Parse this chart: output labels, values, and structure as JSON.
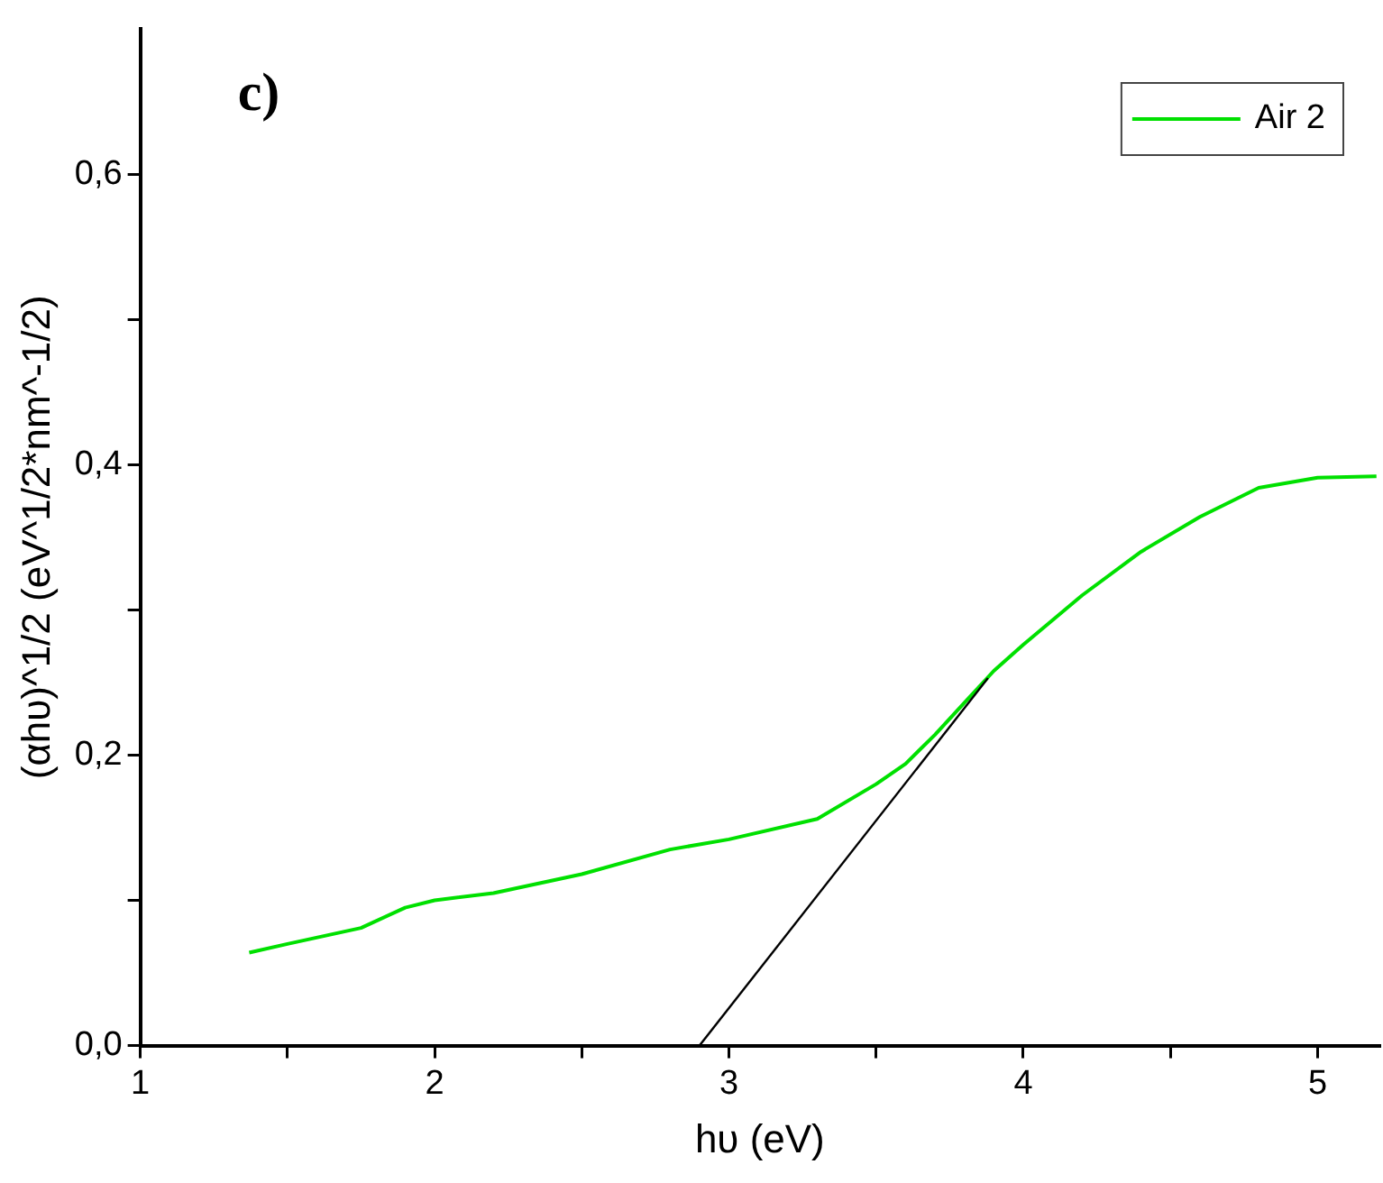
{
  "chart_data": {
    "type": "line",
    "annotations": [
      "c)"
    ],
    "xlabel": "hυ (eV)",
    "ylabel": "(αhυ)^1/2 (eV^1/2*nm^-1/2)",
    "xlim": [
      1,
      5.21
    ],
    "ylim": [
      0,
      0.7
    ],
    "xticks": [
      1,
      {
        "value": 1.5,
        "label": null
      },
      2,
      {
        "value": 2.5,
        "label": null
      },
      3,
      {
        "value": 3.5,
        "label": null
      },
      4,
      {
        "value": 4.5,
        "label": null
      },
      5
    ],
    "yticks": [
      {
        "value": 0,
        "label": "0,0"
      },
      {
        "value": 0.1,
        "label": null
      },
      {
        "value": 0.2,
        "label": "0,2"
      },
      {
        "value": 0.3,
        "label": null
      },
      {
        "value": 0.4,
        "label": "0,4"
      },
      {
        "value": 0.5,
        "label": null
      },
      {
        "value": 0.6,
        "label": "0,6"
      }
    ],
    "grid": false,
    "legend": "top right",
    "marker": "none",
    "line_style": "solid",
    "series": [
      {
        "name": "Air 2",
        "color": "#00e000",
        "x": [
          1.37,
          1.5,
          1.75,
          1.9,
          2.0,
          2.2,
          2.5,
          2.8,
          3.0,
          3.3,
          3.5,
          3.6,
          3.7,
          3.8,
          3.9,
          4.0,
          4.2,
          4.4,
          4.6,
          4.8,
          5.0,
          5.2
        ],
        "values": [
          0.064,
          0.07,
          0.081,
          0.095,
          0.1,
          0.105,
          0.118,
          0.135,
          0.142,
          0.156,
          0.18,
          0.194,
          0.214,
          0.236,
          0.258,
          0.276,
          0.31,
          0.34,
          0.364,
          0.384,
          0.391,
          0.392
        ]
      },
      {
        "type": "line",
        "color": "#000000",
        "x": [
          2.9,
          3.88
        ],
        "values": [
          0,
          0.253
        ]
      }
    ]
  }
}
